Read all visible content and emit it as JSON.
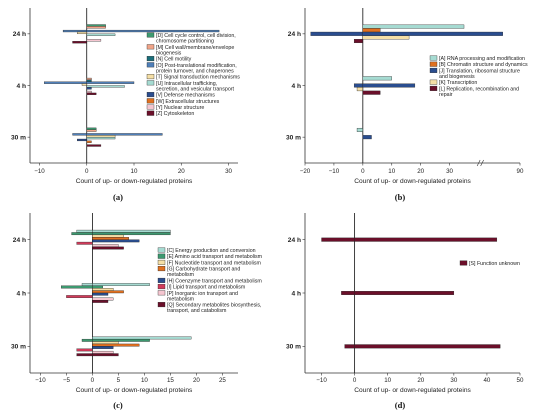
{
  "chart_data": [
    {
      "panel": "(a)",
      "type": "bar",
      "orientation": "horizontal",
      "categories": [
        "24 h",
        "4 h",
        "30 m"
      ],
      "xlabel": "Count of up- or down-regulated proteins",
      "xlim": [
        -12,
        32
      ],
      "xticks": [
        -10,
        0,
        10,
        20,
        30
      ],
      "legend_position": "right",
      "series": [
        {
          "name": "[D] Cell cycle control, cell division, chromosome partitioning",
          "color": "#3d9970",
          "values": [
            4,
            0,
            2
          ]
        },
        {
          "name": "[M] Cell wall/membrane/envelope biogenesis",
          "color": "#f0a488",
          "values": [
            4,
            1,
            2
          ]
        },
        {
          "name": "[N] Cell motility",
          "color": "#1a6e7a",
          "values": [
            0,
            1,
            0
          ]
        },
        {
          "name": "[O] Post-translational modification, protein turnover, and chaperones",
          "color": "#4f7fb8",
          "values": [
            -5,
            -9,
            -3
          ]
        },
        {
          "name": "[T] Signal transduction mechanisms",
          "color": "#f5dfa6",
          "values": [
            -2,
            -1,
            6
          ]
        },
        {
          "name": "[U] Intracellular trafficking, secretion, and vesicular transport",
          "color": "#a6dbd2",
          "values": [
            6,
            8,
            6
          ]
        },
        {
          "name": "[V] Defense mechanisms",
          "color": "#2a4d8f",
          "values": [
            0,
            1,
            -2
          ]
        },
        {
          "name": "[W] Extracellular structures",
          "color": "#e07020",
          "values": [
            0,
            0,
            1
          ]
        },
        {
          "name": "[Y] Nuclear structure",
          "color": "#f5c6d0",
          "values": [
            3,
            1,
            0
          ]
        },
        {
          "name": "[Z] Cytoskeleton",
          "color": "#6b0f2a",
          "values": [
            -3,
            2,
            3
          ]
        }
      ],
      "extra_bars": [
        {
          "category": "24 h",
          "slot": 3,
          "value": 28,
          "color": "#4f7fb8"
        },
        {
          "category": "4 h",
          "slot": 3,
          "value": 10,
          "color": "#4f7fb8"
        },
        {
          "category": "30 m",
          "slot": 3,
          "value": 16,
          "color": "#4f7fb8"
        }
      ]
    },
    {
      "panel": "(b)",
      "type": "bar",
      "orientation": "horizontal",
      "categories": [
        "24 h",
        "4 h",
        "30 m"
      ],
      "xlabel": "Count of up- or down-regulated proteins",
      "xlim": [
        -20,
        90
      ],
      "xticks": [
        -20,
        -10,
        0,
        10,
        20,
        30,
        90
      ],
      "axis_break": true,
      "legend_position": "right",
      "series": [
        {
          "name": "[A] RNA processing and modification",
          "color": "#a6dbd2",
          "values": [
            35,
            10,
            -1
          ]
        },
        {
          "name": "[B] Chromatin structure and dynamics",
          "color": "#e07020",
          "values": [
            6,
            0,
            0
          ]
        },
        {
          "name": "[J] Translation, ribosomal structure and biogenesis",
          "color": "#2a4d8f",
          "values": [
            -18,
            18,
            3
          ]
        },
        {
          "name": "[K] Transcription",
          "color": "#f5dfa6",
          "values": [
            16,
            -2,
            0
          ]
        },
        {
          "name": "[L] Replication, recombination and repair",
          "color": "#6b0f2a",
          "values": [
            -3,
            6,
            0
          ]
        }
      ],
      "extra_bars": [
        {
          "category": "24 h",
          "slot": 2,
          "value": 85,
          "color": "#2a4d8f"
        },
        {
          "category": "4 h",
          "slot": 2,
          "value": -3,
          "color": "#2a4d8f"
        },
        {
          "category": "30 m",
          "slot": 0,
          "value": -2,
          "color": "#a6dbd2"
        }
      ]
    },
    {
      "panel": "(c)",
      "type": "bar",
      "orientation": "horizontal",
      "categories": [
        "24 h",
        "4 h",
        "30 m"
      ],
      "xlabel": "Count of up- or down-regulated proteins",
      "xlim": [
        -12,
        28
      ],
      "xticks": [
        -10,
        -5,
        0,
        5,
        10,
        15,
        20,
        25
      ],
      "legend_position": "right",
      "series": [
        {
          "name": "[C] Energy production and conversion",
          "color": "#a6dbd2",
          "values": [
            15,
            11,
            19
          ]
        },
        {
          "name": "[E] Amino acid transport and metabolism",
          "color": "#3d9970",
          "values": [
            15,
            2,
            11
          ]
        },
        {
          "name": "[F] Nucleotide transport and metabolism",
          "color": "#f5dfa6",
          "values": [
            6,
            4,
            5
          ]
        },
        {
          "name": "[G] Carbohydrate transport and metabolism",
          "color": "#e07020",
          "values": [
            7,
            6,
            9
          ]
        },
        {
          "name": "[H] Coenzyme transport and metabolism",
          "color": "#2a4d8f",
          "values": [
            9,
            3,
            4
          ]
        },
        {
          "name": "[I] Lipid transport and metabolism",
          "color": "#d23a5a",
          "values": [
            -3,
            -5,
            -3
          ]
        },
        {
          "name": "[P] Inorganic ion transport and metabolism",
          "color": "#f5c6d0",
          "values": [
            5,
            4,
            4
          ]
        },
        {
          "name": "[Q] Secondary metabolites biosynthesis, transport, and catabolism",
          "color": "#6b0f2a",
          "values": [
            6,
            3,
            5
          ]
        }
      ],
      "extra_bars": [
        {
          "category": "24 h",
          "slot": 0,
          "value": -3,
          "color": "#a6dbd2"
        },
        {
          "category": "24 h",
          "slot": 1,
          "value": -4,
          "color": "#3d9970"
        },
        {
          "category": "4 h",
          "slot": 0,
          "value": -2,
          "color": "#a6dbd2"
        },
        {
          "category": "4 h",
          "slot": 1,
          "value": -6,
          "color": "#3d9970"
        },
        {
          "category": "30 m",
          "slot": 1,
          "value": -2,
          "color": "#3d9970"
        },
        {
          "category": "30 m",
          "slot": 7,
          "value": -3,
          "color": "#6b0f2a"
        }
      ]
    },
    {
      "panel": "(d)",
      "type": "bar",
      "orientation": "horizontal",
      "categories": [
        "24 h",
        "4 h",
        "30 m"
      ],
      "xlabel": "Count of up- or down-regulated proteins",
      "xlim": [
        -15,
        50
      ],
      "xticks": [
        -10,
        0,
        10,
        20,
        30,
        40,
        50
      ],
      "legend_position": "right",
      "series": [
        {
          "name": "[S] Function unknown",
          "color": "#6b0f2a",
          "values": [
            43,
            30,
            44
          ]
        }
      ],
      "extra_bars": [
        {
          "category": "24 h",
          "slot": 0,
          "value": -10,
          "color": "#6b0f2a"
        },
        {
          "category": "4 h",
          "slot": 0,
          "value": -4,
          "color": "#6b0f2a"
        },
        {
          "category": "30 m",
          "slot": 0,
          "value": -3,
          "color": "#6b0f2a"
        }
      ]
    }
  ]
}
